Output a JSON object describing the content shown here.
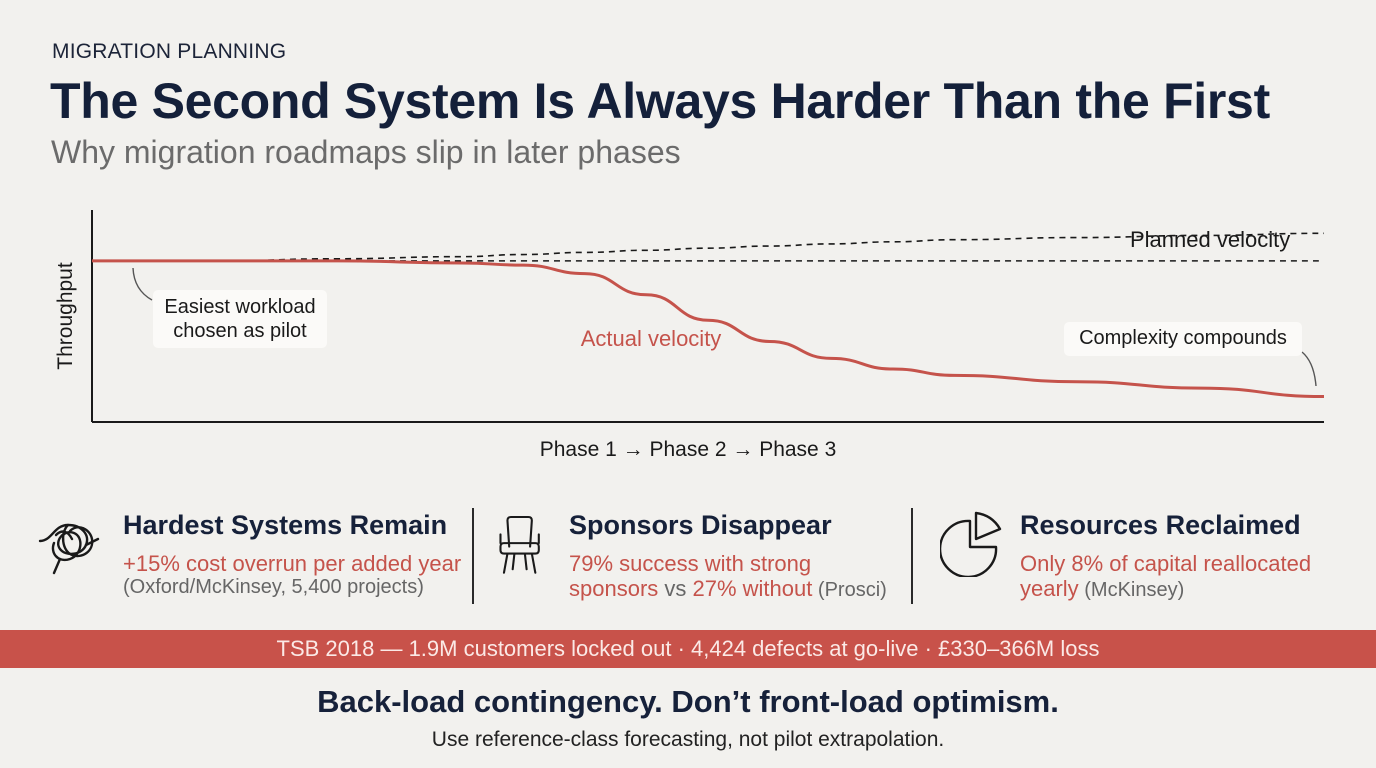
{
  "header": {
    "eyebrow": "MIGRATION PLANNING",
    "title": "The Second System Is Always Harder Than the First",
    "subtitle": "Why migration roadmaps slip in later phases"
  },
  "chart_data": {
    "type": "line",
    "ylabel": "Throughput",
    "xlabel": "Phase 1 → Phase 2 → Phase 3",
    "x": [
      0,
      0.1,
      0.2,
      0.3,
      0.35,
      0.4,
      0.45,
      0.5,
      0.55,
      0.6,
      0.65,
      0.7,
      0.8,
      0.9,
      1.0
    ],
    "xlim": [
      0,
      1
    ],
    "ylim": [
      0,
      1
    ],
    "series": [
      {
        "name": "Planned velocity",
        "style": "dashed",
        "color": "#1a1a1a",
        "values": [
          0.76,
          0.76,
          0.77,
          0.78,
          0.79,
          0.8,
          0.81,
          0.82,
          0.83,
          0.84,
          0.85,
          0.86,
          0.87,
          0.88,
          0.89
        ]
      },
      {
        "name": "Planned velocity baseline",
        "style": "dashed",
        "color": "#1a1a1a",
        "values": [
          0.76,
          0.76,
          0.76,
          0.76,
          0.76,
          0.76,
          0.76,
          0.76,
          0.76,
          0.76,
          0.76,
          0.76,
          0.76,
          0.76,
          0.76
        ]
      },
      {
        "name": "Actual velocity",
        "style": "solid",
        "color": "#c5534b",
        "values": [
          0.76,
          0.76,
          0.76,
          0.75,
          0.74,
          0.7,
          0.6,
          0.48,
          0.38,
          0.3,
          0.25,
          0.22,
          0.19,
          0.16,
          0.12
        ]
      }
    ],
    "annotations": [
      {
        "text": "Easiest workload chosen as pilot",
        "line1": "Easiest workload",
        "line2": "chosen as pilot"
      },
      {
        "text": "Actual velocity"
      },
      {
        "text": "Planned velocity"
      },
      {
        "text": "Complexity compounds"
      }
    ],
    "grid": false
  },
  "stats": [
    {
      "icon": "tangle-knot-icon",
      "title": "Hardest Systems Remain",
      "line1_red": "+15% cost overrun per added year",
      "line2_grey": "(Oxford/McKinsey, 5,400 projects)"
    },
    {
      "icon": "empty-chair-icon",
      "title": "Sponsors Disappear",
      "line1_red": "79% success with strong",
      "line2_red_a": "sponsors",
      "line2_grey_a": " vs ",
      "line2_red_b": "27% without",
      "line2_grey_b": " (Prosci)"
    },
    {
      "icon": "pie-chart-icon",
      "title": "Resources Reclaimed",
      "line1_red": "Only 8% of capital reallocated",
      "line2_red": "yearly",
      "line2_grey": " (McKinsey)"
    }
  ],
  "banner": "TSB 2018 — 1.9M customers locked out · 4,424 defects at go-live · £330–366M loss",
  "footer": {
    "headline": "Back-load contingency. Don’t front-load optimism.",
    "sub": "Use reference-class forecasting, not pilot extrapolation."
  },
  "colors": {
    "background": "#f2f1ee",
    "accent": "#c5534b",
    "banner": "#c8524a",
    "text": "#16213a"
  }
}
